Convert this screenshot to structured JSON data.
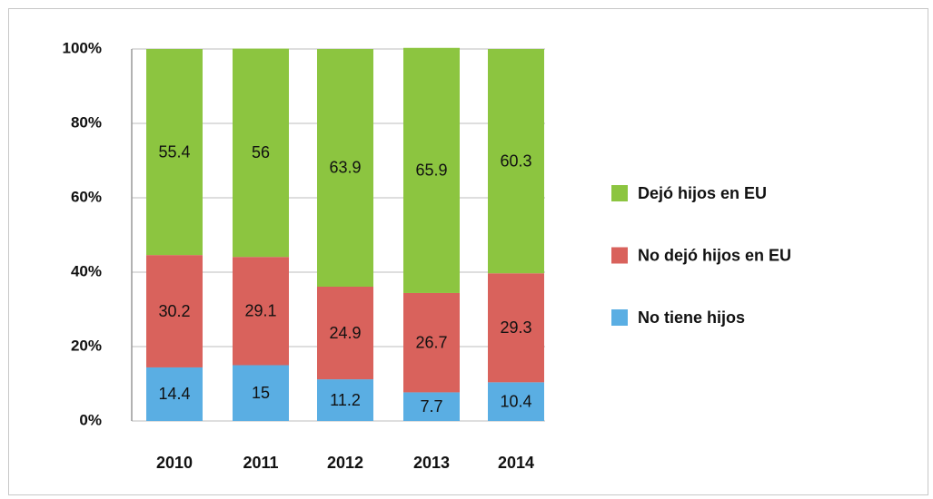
{
  "chart_data": {
    "type": "stacked_bar",
    "categories": [
      "2010",
      "2011",
      "2012",
      "2013",
      "2014"
    ],
    "series": [
      {
        "name": "No tiene hijos",
        "color": "#5aaee3",
        "values": [
          14.4,
          15,
          11.2,
          7.7,
          10.4
        ]
      },
      {
        "name": "No dejó hijos en EU",
        "color": "#d9625c",
        "values": [
          30.2,
          29.1,
          24.9,
          26.7,
          29.3
        ]
      },
      {
        "name": "Dejó hijos en EU",
        "color": "#8cc540",
        "values": [
          55.4,
          56,
          63.9,
          65.9,
          60.3
        ]
      }
    ],
    "ylim": [
      0,
      100
    ],
    "yticks": [
      {
        "value": 0,
        "label": "0%"
      },
      {
        "value": 20,
        "label": "20%"
      },
      {
        "value": 40,
        "label": "40%"
      },
      {
        "value": 60,
        "label": "60%"
      },
      {
        "value": 80,
        "label": "80%"
      },
      {
        "value": 100,
        "label": "100%"
      }
    ],
    "grid": true,
    "legend": "right"
  }
}
